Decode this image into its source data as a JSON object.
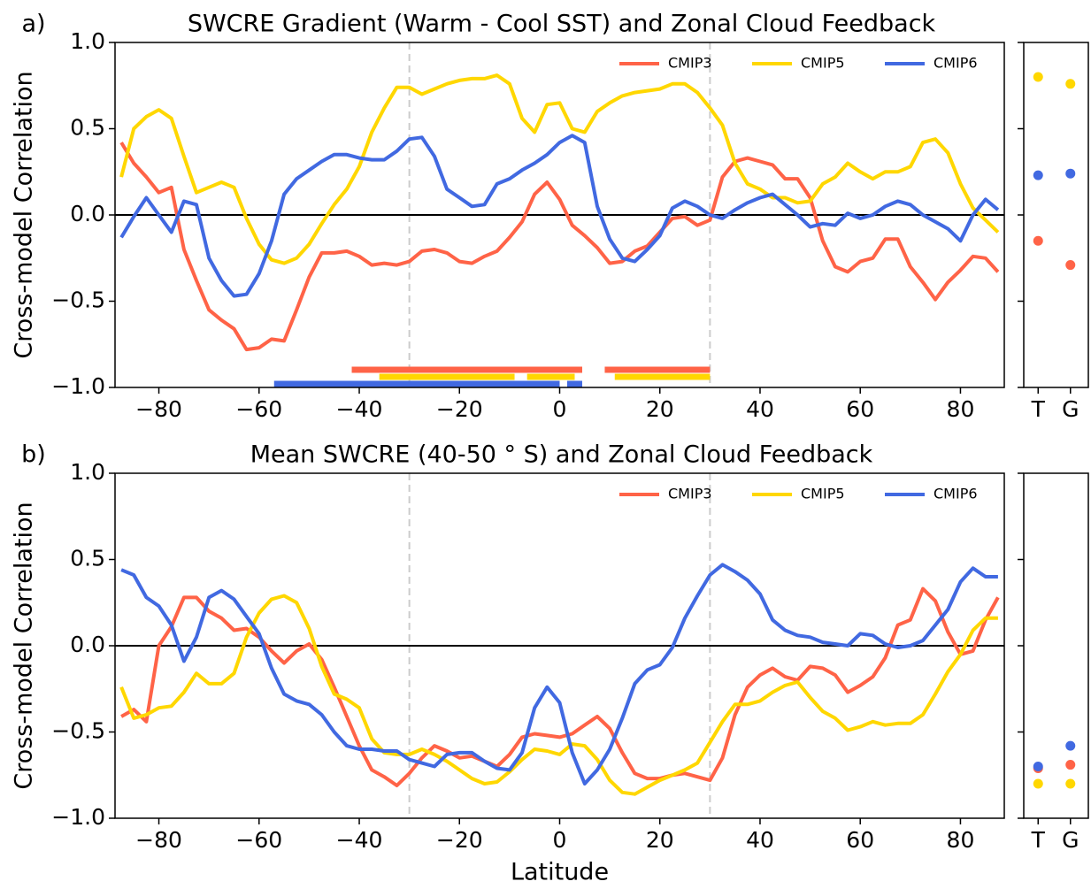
{
  "chart_data": [
    {
      "type": "line",
      "panel_label": "a)",
      "title": "SWCRE Gradient (Warm - Cool SST) and Zonal Cloud Feedback",
      "ylabel": "Cross-model Correlation",
      "x": [
        -87.5,
        -85,
        -82.5,
        -80,
        -77.5,
        -75,
        -72.5,
        -70,
        -67.5,
        -65,
        -62.5,
        -60,
        -57.5,
        -55,
        -52.5,
        -50,
        -47.5,
        -45,
        -42.5,
        -40,
        -37.5,
        -35,
        -32.5,
        -30,
        -27.5,
        -25,
        -22.5,
        -20,
        -17.5,
        -15,
        -12.5,
        -10,
        -7.5,
        -5,
        -2.5,
        0,
        2.5,
        5,
        7.5,
        10,
        12.5,
        15,
        17.5,
        20,
        22.5,
        25,
        27.5,
        30,
        32.5,
        35,
        37.5,
        40,
        42.5,
        45,
        47.5,
        50,
        52.5,
        55,
        57.5,
        60,
        62.5,
        65,
        67.5,
        70,
        72.5,
        75,
        77.5,
        80,
        82.5,
        85,
        87.5
      ],
      "series": [
        {
          "name": "CMIP3",
          "color": "#ff6347",
          "values": [
            0.42,
            0.3,
            0.22,
            0.13,
            0.16,
            -0.2,
            -0.38,
            -0.55,
            -0.61,
            -0.66,
            -0.78,
            -0.77,
            -0.72,
            -0.73,
            -0.55,
            -0.36,
            -0.22,
            -0.22,
            -0.21,
            -0.24,
            -0.29,
            -0.28,
            -0.29,
            -0.27,
            -0.21,
            -0.2,
            -0.22,
            -0.27,
            -0.28,
            -0.24,
            -0.21,
            -0.13,
            -0.04,
            0.12,
            0.19,
            0.09,
            -0.06,
            -0.12,
            -0.19,
            -0.28,
            -0.27,
            -0.21,
            -0.18,
            -0.1,
            -0.02,
            -0.01,
            -0.06,
            -0.03,
            0.22,
            0.31,
            0.33,
            0.31,
            0.29,
            0.21,
            0.21,
            0.1,
            -0.15,
            -0.3,
            -0.33,
            -0.27,
            -0.25,
            -0.14,
            -0.14,
            -0.3,
            -0.39,
            -0.49,
            -0.39,
            -0.32,
            -0.24,
            -0.25,
            -0.33
          ],
          "significant": [
            [
              -41.5,
              4.5
            ],
            [
              9,
              30
            ]
          ],
          "tg": [
            -0.15,
            -0.29
          ]
        },
        {
          "name": "CMIP5",
          "color": "#ffd700",
          "values": [
            0.22,
            0.5,
            0.57,
            0.61,
            0.56,
            0.34,
            0.13,
            0.16,
            0.19,
            0.16,
            -0.02,
            -0.17,
            -0.26,
            -0.28,
            -0.25,
            -0.17,
            -0.05,
            0.06,
            0.15,
            0.28,
            0.48,
            0.62,
            0.74,
            0.74,
            0.7,
            0.73,
            0.76,
            0.78,
            0.79,
            0.79,
            0.81,
            0.76,
            0.56,
            0.48,
            0.64,
            0.65,
            0.5,
            0.48,
            0.6,
            0.65,
            0.69,
            0.71,
            0.72,
            0.73,
            0.76,
            0.76,
            0.71,
            0.62,
            0.52,
            0.3,
            0.18,
            0.15,
            0.1,
            0.1,
            0.07,
            0.08,
            0.18,
            0.22,
            0.3,
            0.25,
            0.21,
            0.25,
            0.25,
            0.28,
            0.42,
            0.44,
            0.36,
            0.18,
            0.04,
            -0.03,
            -0.1
          ],
          "significant": [
            [
              -36,
              -9
            ],
            [
              -6.5,
              3
            ],
            [
              11,
              30
            ]
          ],
          "tg": [
            0.8,
            0.76
          ]
        },
        {
          "name": "CMIP6",
          "color": "#4169e1",
          "values": [
            -0.13,
            -0.01,
            0.1,
            0.0,
            -0.1,
            0.08,
            0.06,
            -0.25,
            -0.38,
            -0.47,
            -0.46,
            -0.34,
            -0.15,
            0.12,
            0.21,
            0.26,
            0.31,
            0.35,
            0.35,
            0.33,
            0.32,
            0.32,
            0.37,
            0.44,
            0.45,
            0.34,
            0.15,
            0.1,
            0.05,
            0.06,
            0.18,
            0.21,
            0.26,
            0.3,
            0.35,
            0.42,
            0.46,
            0.42,
            0.05,
            -0.14,
            -0.25,
            -0.27,
            -0.2,
            -0.12,
            0.04,
            0.08,
            0.05,
            0.0,
            -0.02,
            0.03,
            0.07,
            0.1,
            0.12,
            0.06,
            0.0,
            -0.07,
            -0.05,
            -0.06,
            0.01,
            -0.02,
            0.0,
            0.05,
            0.08,
            0.06,
            0.0,
            -0.04,
            -0.08,
            -0.15,
            0.0,
            0.09,
            0.03
          ],
          "significant": [
            [
              -57,
              0
            ],
            [
              1.5,
              4.5
            ]
          ],
          "tg": [
            0.23,
            0.24
          ]
        }
      ],
      "xlim": [
        -88.75,
        88.75
      ],
      "ylim": [
        -1,
        1
      ],
      "xticks": [
        {
          "value": -80,
          "label": "−80"
        },
        {
          "value": -60,
          "label": "−60"
        },
        {
          "value": -40,
          "label": "−40"
        },
        {
          "value": -20,
          "label": "−20"
        },
        0,
        20,
        40,
        60,
        80
      ],
      "yticks": [
        {
          "value": -1,
          "label": "−1.0"
        },
        {
          "value": -0.5,
          "label": "−0.5"
        },
        {
          "value": 0,
          "label": "0.0"
        },
        {
          "value": 0.5,
          "label": "0.5"
        },
        {
          "value": 1,
          "label": "1.0"
        }
      ],
      "vlines": [
        -30,
        30
      ],
      "hline": 0,
      "legend": "upper right",
      "side_categories": [
        "T",
        "G"
      ]
    },
    {
      "type": "line",
      "panel_label": "b)",
      "title": "Mean SWCRE (40-50 ° S) and Zonal Cloud Feedback",
      "ylabel": "Cross-model Correlation",
      "xlabel": "Latitude",
      "x": [
        -87.5,
        -85,
        -82.5,
        -80,
        -77.5,
        -75,
        -72.5,
        -70,
        -67.5,
        -65,
        -62.5,
        -60,
        -57.5,
        -55,
        -52.5,
        -50,
        -47.5,
        -45,
        -42.5,
        -40,
        -37.5,
        -35,
        -32.5,
        -30,
        -27.5,
        -25,
        -22.5,
        -20,
        -17.5,
        -15,
        -12.5,
        -10,
        -7.5,
        -5,
        -2.5,
        0,
        2.5,
        5,
        7.5,
        10,
        12.5,
        15,
        17.5,
        20,
        22.5,
        25,
        27.5,
        30,
        32.5,
        35,
        37.5,
        40,
        42.5,
        45,
        47.5,
        50,
        52.5,
        55,
        57.5,
        60,
        62.5,
        65,
        67.5,
        70,
        72.5,
        75,
        77.5,
        80,
        82.5,
        85,
        87.5
      ],
      "series": [
        {
          "name": "CMIP3",
          "color": "#ff6347",
          "values": [
            -0.41,
            -0.37,
            -0.44,
            0.0,
            0.11,
            0.28,
            0.28,
            0.2,
            0.16,
            0.09,
            0.1,
            0.05,
            -0.03,
            -0.1,
            -0.03,
            0.01,
            -0.08,
            -0.24,
            -0.41,
            -0.58,
            -0.72,
            -0.76,
            -0.81,
            -0.74,
            -0.65,
            -0.58,
            -0.61,
            -0.65,
            -0.64,
            -0.67,
            -0.7,
            -0.63,
            -0.53,
            -0.51,
            -0.52,
            -0.53,
            -0.51,
            -0.46,
            -0.41,
            -0.48,
            -0.62,
            -0.74,
            -0.77,
            -0.77,
            -0.75,
            -0.74,
            -0.76,
            -0.78,
            -0.65,
            -0.4,
            -0.24,
            -0.17,
            -0.13,
            -0.18,
            -0.2,
            -0.12,
            -0.13,
            -0.17,
            -0.27,
            -0.23,
            -0.18,
            -0.07,
            0.12,
            0.15,
            0.33,
            0.26,
            0.08,
            -0.05,
            -0.03,
            0.15,
            0.28
          ],
          "tg": [
            -0.71,
            -0.69
          ]
        },
        {
          "name": "CMIP5",
          "color": "#ffd700",
          "values": [
            -0.24,
            -0.42,
            -0.4,
            -0.36,
            -0.35,
            -0.27,
            -0.16,
            -0.22,
            -0.22,
            -0.16,
            0.05,
            0.19,
            0.27,
            0.29,
            0.25,
            0.1,
            -0.12,
            -0.28,
            -0.31,
            -0.36,
            -0.54,
            -0.62,
            -0.63,
            -0.63,
            -0.6,
            -0.63,
            -0.67,
            -0.72,
            -0.77,
            -0.8,
            -0.79,
            -0.73,
            -0.66,
            -0.6,
            -0.61,
            -0.63,
            -0.57,
            -0.58,
            -0.66,
            -0.78,
            -0.85,
            -0.86,
            -0.82,
            -0.78,
            -0.75,
            -0.72,
            -0.68,
            -0.56,
            -0.44,
            -0.34,
            -0.34,
            -0.32,
            -0.27,
            -0.23,
            -0.21,
            -0.3,
            -0.38,
            -0.42,
            -0.49,
            -0.47,
            -0.44,
            -0.46,
            -0.45,
            -0.45,
            -0.4,
            -0.28,
            -0.15,
            -0.05,
            0.09,
            0.16,
            0.16
          ],
          "tg": [
            -0.8,
            -0.8
          ]
        },
        {
          "name": "CMIP6",
          "color": "#4169e1",
          "values": [
            0.44,
            0.41,
            0.28,
            0.23,
            0.12,
            -0.09,
            0.05,
            0.28,
            0.32,
            0.27,
            0.17,
            0.07,
            -0.13,
            -0.28,
            -0.32,
            -0.34,
            -0.4,
            -0.5,
            -0.58,
            -0.6,
            -0.6,
            -0.61,
            -0.61,
            -0.66,
            -0.68,
            -0.7,
            -0.63,
            -0.62,
            -0.62,
            -0.67,
            -0.71,
            -0.72,
            -0.62,
            -0.36,
            -0.24,
            -0.33,
            -0.62,
            -0.8,
            -0.72,
            -0.6,
            -0.42,
            -0.22,
            -0.14,
            -0.11,
            -0.01,
            0.16,
            0.29,
            0.41,
            0.47,
            0.43,
            0.38,
            0.3,
            0.15,
            0.09,
            0.06,
            0.05,
            0.02,
            0.01,
            0.0,
            0.07,
            0.06,
            0.01,
            -0.01,
            0.0,
            0.03,
            0.12,
            0.21,
            0.37,
            0.45,
            0.4,
            0.4
          ],
          "tg": [
            -0.7,
            -0.58
          ]
        }
      ],
      "xlim": [
        -88.75,
        88.75
      ],
      "ylim": [
        -1,
        1
      ],
      "xticks": [
        {
          "value": -80,
          "label": "−80"
        },
        {
          "value": -60,
          "label": "−60"
        },
        {
          "value": -40,
          "label": "−40"
        },
        {
          "value": -20,
          "label": "−20"
        },
        0,
        20,
        40,
        60,
        80
      ],
      "yticks": [
        {
          "value": -1,
          "label": "−1.0"
        },
        {
          "value": -0.5,
          "label": "−0.5"
        },
        {
          "value": 0,
          "label": "0.0"
        },
        {
          "value": 0.5,
          "label": "0.5"
        },
        {
          "value": 1,
          "label": "1.0"
        }
      ],
      "vlines": [
        -30,
        30
      ],
      "hline": 0,
      "legend": "upper right",
      "side_categories": [
        "T",
        "G"
      ]
    }
  ]
}
